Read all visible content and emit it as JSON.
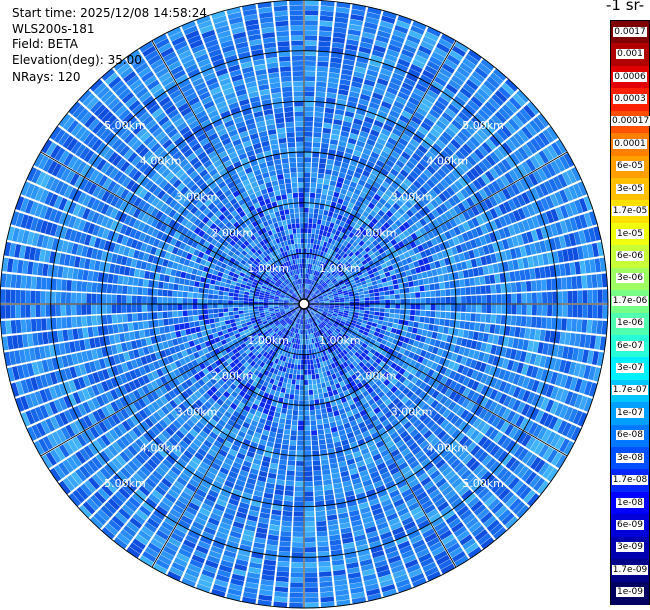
{
  "header": {
    "start_time": "Start time: 2025/12/08 14:58:24",
    "instrument": "WLS200s-181",
    "field": "Field: BETA",
    "elevation": "Elevation(deg): 35.00",
    "nrays": "NRays: 120"
  },
  "colorbar": {
    "title": "-1 sr-",
    "labels": [
      "0.0017",
      "0.001",
      "0.0006",
      "0.0003",
      "0.00017",
      "0.0001",
      "6e-05",
      "3e-05",
      "1.7e-05",
      "1e-05",
      "6e-06",
      "3e-06",
      "1.7e-06",
      "1e-06",
      "6e-07",
      "3e-07",
      "1.7e-07",
      "1e-07",
      "6e-08",
      "3e-08",
      "1.7e-08",
      "1e-08",
      "6e-09",
      "3e-09",
      "1.7e-09",
      "1e-09"
    ],
    "colors": [
      "#7f0000",
      "#b00000",
      "#e00000",
      "#ff2000",
      "#ff5000",
      "#ff8000",
      "#ffa000",
      "#ffc000",
      "#ffe000",
      "#f0ff10",
      "#c8ff38",
      "#a0ff60",
      "#78ff88",
      "#50ffb0",
      "#28ffd8",
      "#00f0ff",
      "#00c8ff",
      "#00a0ff",
      "#0078ff",
      "#0050ff",
      "#0028ff",
      "#0000ff",
      "#0000d8",
      "#0000b0",
      "#000088",
      "#000060"
    ]
  },
  "chart_data": {
    "type": "heatmap",
    "projection": "polar-ppi",
    "field": "BETA",
    "nrays": 120,
    "max_range_km": 6.0,
    "range_rings_km": [
      1,
      2,
      3,
      4,
      5,
      6
    ],
    "range_labels": [
      "1.00km",
      "2.00km",
      "3.00km",
      "4.00km",
      "5.00km"
    ],
    "dominant_value_range": [
      "3e-08",
      "1.7e-08"
    ],
    "near_range_value": "1e-08"
  }
}
